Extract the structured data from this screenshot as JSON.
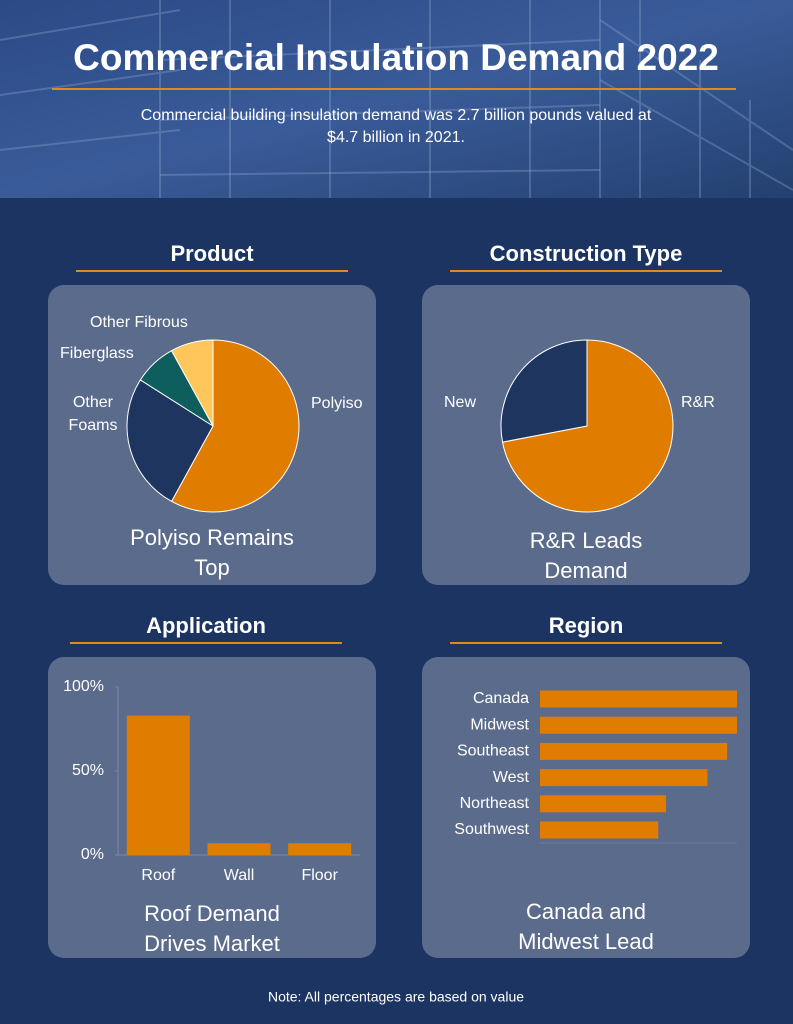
{
  "header": {
    "title": "Commercial Insulation Demand 2022",
    "subtitle": "Commercial building insulation demand was 2.7 billion pounds valued at $4.7 billion in 2021."
  },
  "chart_data": [
    {
      "type": "pie",
      "title": "Product",
      "caption": "Polyiso Remains Top",
      "categories": [
        "Polyiso",
        "Other Foams",
        "Fiberglass",
        "Other Fibrous"
      ],
      "values": [
        58,
        26,
        8,
        8
      ],
      "colors": [
        "#e07c00",
        "#1e3560",
        "#0f5e5e",
        "#ffc65c"
      ]
    },
    {
      "type": "pie",
      "title": "Construction Type",
      "caption": "R&R Leads Demand",
      "categories": [
        "R&R",
        "New"
      ],
      "values": [
        72,
        28
      ],
      "colors": [
        "#e07c00",
        "#1e3560"
      ]
    },
    {
      "type": "bar",
      "title": "Application",
      "caption": "Roof Demand Drives Market",
      "categories": [
        "Roof",
        "Wall",
        "Floor"
      ],
      "values": [
        83,
        7,
        7
      ],
      "color": "#e07c00",
      "ylim": [
        0,
        100
      ],
      "yticks": [
        {
          "value": 0,
          "label": "0%"
        },
        {
          "value": 50,
          "label": "50%"
        },
        {
          "value": 100,
          "label": "100%"
        }
      ]
    },
    {
      "type": "hbar",
      "title": "Region",
      "caption": "Canada and Midwest Lead",
      "categories": [
        "Canada",
        "Midwest",
        "Southeast",
        "West",
        "Northeast",
        "Southwest"
      ],
      "values": [
        100,
        100,
        95,
        85,
        64,
        60
      ],
      "color": "#e07c00",
      "xlim": [
        0,
        100
      ]
    }
  ],
  "note": "Note: All percentages are based on value"
}
